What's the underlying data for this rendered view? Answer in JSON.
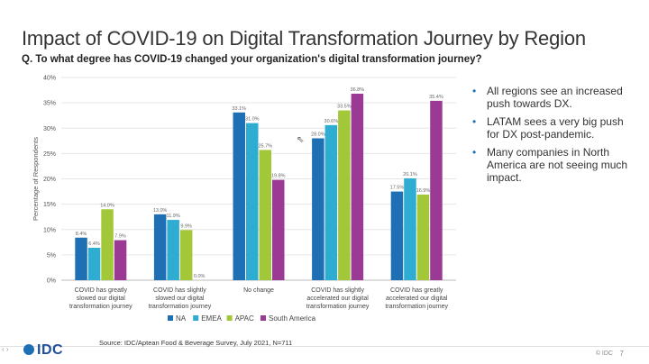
{
  "slide": {
    "title": "Impact of COVID-19 on Digital Transformation Journey by Region",
    "question": "Q. To what degree has COVID-19 changed your organization's digital transformation journey?",
    "bullets": [
      "All regions see an increased push towards DX.",
      "LATAM sees a very big push for DX post-pandemic.",
      "Many companies in North America are not seeing much impact."
    ],
    "source": "Source: IDC/Aptean Food & Beverage Survey, July 2021, N=711",
    "logo_text": "IDC",
    "footer_text": "© IDC",
    "page_number": "7"
  },
  "chart_data": {
    "type": "bar",
    "ylabel": "Percentage of Respondents",
    "ylim": [
      0,
      40
    ],
    "yticks": [
      "0%",
      "5%",
      "10%",
      "15%",
      "20%",
      "25%",
      "30%",
      "35%",
      "40%"
    ],
    "categories": [
      [
        "COVID has greatly",
        "slowed our digital",
        "transformation journey"
      ],
      [
        "COVID has slightly",
        "slowed our digital",
        "transformation journey"
      ],
      [
        "No change"
      ],
      [
        "COVID has slightly",
        "accelerated our digital",
        "transformation journey"
      ],
      [
        "COVID has greatly",
        "accelerated our digital",
        "transformation journey"
      ]
    ],
    "series": [
      {
        "name": "NA",
        "color": "#1f6fb4",
        "values": [
          8.4,
          13.0,
          33.1,
          28.0,
          17.5
        ],
        "labels": [
          "8.4%",
          "13.0%",
          "33.1%",
          "28.0%",
          "17.5%"
        ]
      },
      {
        "name": "EMEA",
        "color": "#2eacd1",
        "values": [
          6.4,
          11.9,
          31.0,
          30.6,
          20.1
        ],
        "labels": [
          "6.4%",
          "11.9%",
          "31.0%",
          "30.6%",
          "20.1%"
        ]
      },
      {
        "name": "APAC",
        "color": "#a2c83a",
        "values": [
          14.0,
          9.9,
          25.7,
          33.5,
          16.9
        ],
        "labels": [
          "14.0%",
          "9.9%",
          "25.7%",
          "33.5%",
          "16.9%"
        ]
      },
      {
        "name": "South America",
        "color": "#9b3a94",
        "values": [
          7.9,
          0.0,
          19.8,
          36.8,
          35.4
        ],
        "labels": [
          "7.9%",
          "0.0%",
          "19.8%",
          "36.8%",
          "35.4%"
        ]
      }
    ]
  }
}
